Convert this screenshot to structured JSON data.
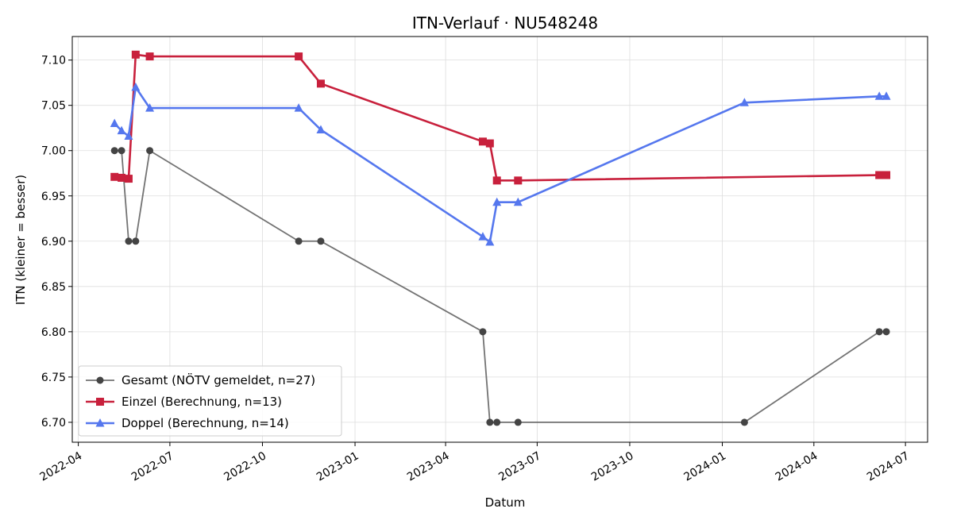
{
  "chart_data": {
    "type": "line",
    "title": "ITN-Verlauf · NU548248",
    "xlabel": "Datum",
    "ylabel": "ITN  (kleiner = besser)",
    "xlim": [
      "2022-03-26",
      "2024-07-23"
    ],
    "ylim": [
      6.678,
      7.126
    ],
    "x_ticks": [
      "2022-04",
      "2022-07",
      "2022-10",
      "2023-01",
      "2023-04",
      "2023-07",
      "2023-10",
      "2024-01",
      "2024-04",
      "2024-07"
    ],
    "y_ticks": [
      "6.70",
      "6.75",
      "6.80",
      "6.85",
      "6.90",
      "6.95",
      "7.00",
      "7.05",
      "7.10"
    ],
    "grid": true,
    "legend_position": "bottom-left",
    "series": [
      {
        "name": "Gesamt (NÖTV gemeldet, n=27)",
        "color": "#444444",
        "marker": "circle",
        "points": [
          [
            "2022-05-07",
            7.0
          ],
          [
            "2022-05-14",
            7.0
          ],
          [
            "2022-05-21",
            6.9
          ],
          [
            "2022-05-28",
            6.9
          ],
          [
            "2022-06-11",
            7.0
          ],
          [
            "2022-11-06",
            6.9
          ],
          [
            "2022-11-28",
            6.9
          ],
          [
            "2023-05-08",
            6.8
          ],
          [
            "2023-05-15",
            6.7
          ],
          [
            "2023-05-22",
            6.7
          ],
          [
            "2023-06-12",
            6.7
          ],
          [
            "2024-01-23",
            6.7
          ],
          [
            "2024-06-05",
            6.8
          ],
          [
            "2024-06-12",
            6.8
          ]
        ]
      },
      {
        "name": "Einzel (Berechnung, n=13)",
        "color": "#c8203c",
        "marker": "square",
        "points": [
          [
            "2022-05-07",
            6.971
          ],
          [
            "2022-05-14",
            6.97
          ],
          [
            "2022-05-21",
            6.969
          ],
          [
            "2022-05-28",
            7.106
          ],
          [
            "2022-06-11",
            7.104
          ],
          [
            "2022-11-06",
            7.104
          ],
          [
            "2022-11-28",
            7.074
          ],
          [
            "2023-05-08",
            7.01
          ],
          [
            "2023-05-15",
            7.008
          ],
          [
            "2023-05-22",
            6.967
          ],
          [
            "2023-06-12",
            6.967
          ],
          [
            "2024-06-05",
            6.973
          ],
          [
            "2024-06-12",
            6.973
          ]
        ]
      },
      {
        "name": "Doppel (Berechnung, n=14)",
        "color": "#5577ee",
        "marker": "triangle",
        "points": [
          [
            "2022-05-07",
            7.03
          ],
          [
            "2022-05-14",
            7.022
          ],
          [
            "2022-05-21",
            7.016
          ],
          [
            "2022-05-28",
            7.07
          ],
          [
            "2022-06-11",
            7.047
          ],
          [
            "2022-11-06",
            7.047
          ],
          [
            "2022-11-28",
            7.023
          ],
          [
            "2023-05-08",
            6.905
          ],
          [
            "2023-05-15",
            6.899
          ],
          [
            "2023-05-22",
            6.943
          ],
          [
            "2023-06-12",
            6.943
          ],
          [
            "2024-01-23",
            7.053
          ],
          [
            "2024-06-05",
            7.06
          ],
          [
            "2024-06-12",
            7.06
          ]
        ]
      }
    ]
  }
}
